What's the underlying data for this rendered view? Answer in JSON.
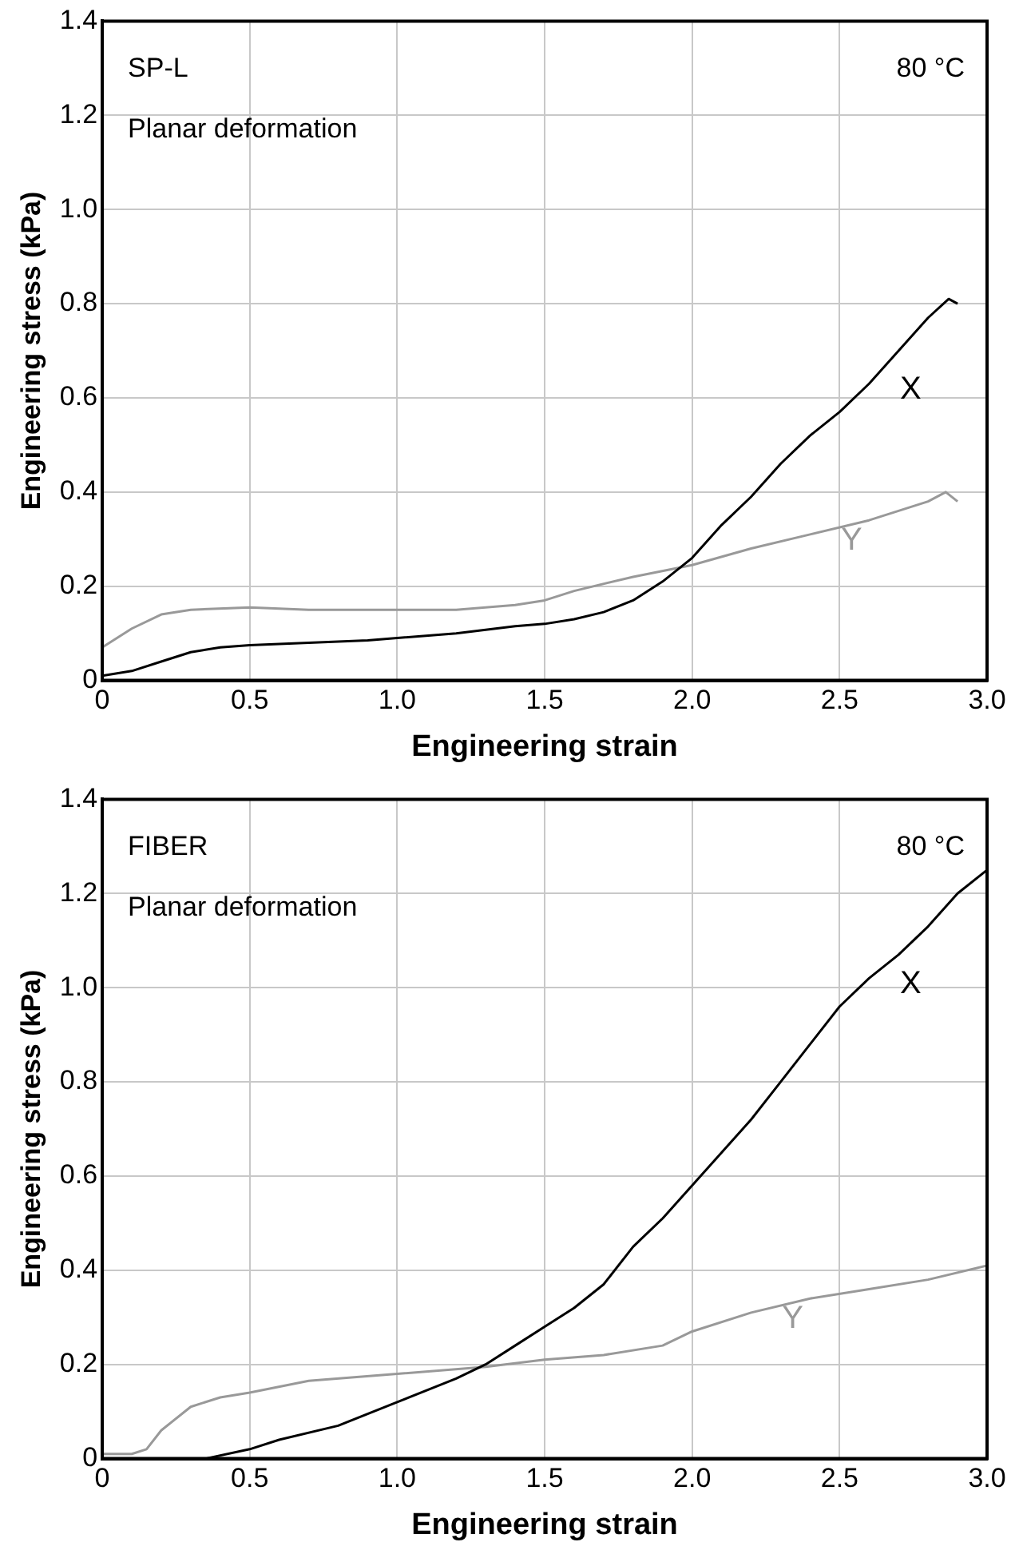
{
  "chart_data": [
    {
      "type": "line",
      "xlabel": "Engineering strain",
      "ylabel": "Engineering stress (kPa)",
      "annotations": [
        "SP-L",
        "80 °C",
        "Planar deformation"
      ],
      "xlim": [
        0,
        3
      ],
      "xticks": [
        0,
        0.5,
        {
          "value": 1,
          "label": "1.0"
        },
        1.5,
        {
          "value": 2,
          "label": "2.0"
        },
        2.5,
        {
          "value": 3,
          "label": "3.0"
        }
      ],
      "ylim": [
        0,
        1.4
      ],
      "yticks": [
        0,
        0.2,
        0.4,
        0.6,
        0.8,
        {
          "value": 1,
          "label": "1.0"
        },
        1.2,
        1.4
      ],
      "grid": true,
      "legend": false,
      "marker": "none",
      "line_style": "solid",
      "series": [
        {
          "name": "X",
          "color": "#000000",
          "x": [
            0,
            0.1,
            0.2,
            0.3,
            0.4,
            0.5,
            0.7,
            0.9,
            1.0,
            1.2,
            1.4,
            1.5,
            1.6,
            1.7,
            1.8,
            1.9,
            2.0,
            2.1,
            2.2,
            2.3,
            2.4,
            2.5,
            2.6,
            2.7,
            2.8,
            2.87,
            2.9
          ],
          "values": [
            0.01,
            0.02,
            0.04,
            0.06,
            0.07,
            0.075,
            0.08,
            0.085,
            0.09,
            0.1,
            0.115,
            0.12,
            0.13,
            0.145,
            0.17,
            0.21,
            0.26,
            0.33,
            0.39,
            0.46,
            0.52,
            0.57,
            0.63,
            0.7,
            0.77,
            0.81,
            0.8
          ]
        },
        {
          "name": "Y",
          "color": "#999999",
          "x": [
            0,
            0.1,
            0.2,
            0.3,
            0.5,
            0.7,
            1.0,
            1.2,
            1.4,
            1.5,
            1.6,
            1.8,
            2.0,
            2.2,
            2.4,
            2.6,
            2.8,
            2.86,
            2.9
          ],
          "values": [
            0.07,
            0.11,
            0.14,
            0.15,
            0.155,
            0.15,
            0.15,
            0.15,
            0.16,
            0.17,
            0.19,
            0.22,
            0.245,
            0.28,
            0.31,
            0.34,
            0.38,
            0.4,
            0.38
          ]
        }
      ]
    },
    {
      "type": "line",
      "xlabel": "Engineering strain",
      "ylabel": "Engineering stress (kPa)",
      "annotations": [
        "FIBER",
        "80 °C",
        "Planar deformation"
      ],
      "xlim": [
        0,
        3
      ],
      "xticks": [
        0,
        0.5,
        {
          "value": 1,
          "label": "1.0"
        },
        1.5,
        {
          "value": 2,
          "label": "2.0"
        },
        2.5,
        {
          "value": 3,
          "label": "3.0"
        }
      ],
      "ylim": [
        0,
        1.4
      ],
      "yticks": [
        0,
        0.2,
        0.4,
        0.6,
        0.8,
        {
          "value": 1,
          "label": "1.0"
        },
        1.2,
        1.4
      ],
      "grid": true,
      "legend": false,
      "marker": "none",
      "line_style": "solid",
      "series": [
        {
          "name": "X",
          "color": "#000000",
          "x": [
            0.2,
            0.35,
            0.5,
            0.6,
            0.8,
            1.0,
            1.2,
            1.3,
            1.4,
            1.5,
            1.6,
            1.7,
            1.8,
            1.9,
            2.0,
            2.1,
            2.2,
            2.3,
            2.4,
            2.5,
            2.6,
            2.7,
            2.8,
            2.9,
            3.0
          ],
          "values": [
            0,
            0,
            0.02,
            0.04,
            0.07,
            0.12,
            0.17,
            0.2,
            0.24,
            0.28,
            0.32,
            0.37,
            0.45,
            0.51,
            0.58,
            0.65,
            0.72,
            0.8,
            0.88,
            0.96,
            1.02,
            1.07,
            1.13,
            1.2,
            1.25
          ]
        },
        {
          "name": "Y",
          "color": "#999999",
          "x": [
            0,
            0.1,
            0.15,
            0.2,
            0.3,
            0.4,
            0.5,
            0.7,
            1.0,
            1.3,
            1.5,
            1.7,
            1.9,
            2.0,
            2.2,
            2.4,
            2.6,
            2.8,
            3.0
          ],
          "values": [
            0.01,
            0.01,
            0.02,
            0.06,
            0.11,
            0.13,
            0.14,
            0.165,
            0.18,
            0.195,
            0.21,
            0.22,
            0.24,
            0.27,
            0.31,
            0.34,
            0.36,
            0.38,
            0.41
          ]
        }
      ]
    }
  ]
}
